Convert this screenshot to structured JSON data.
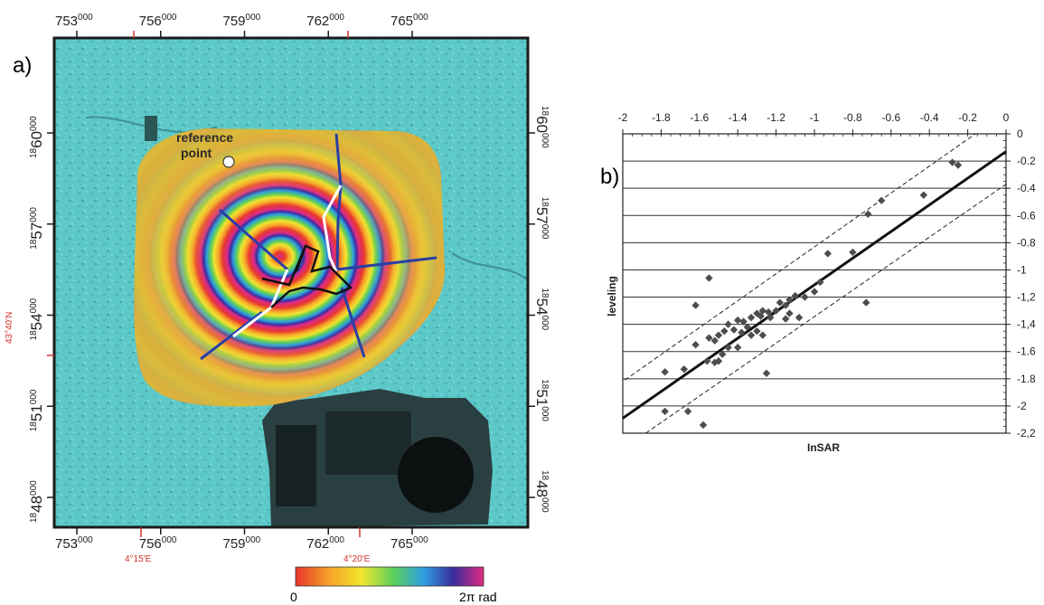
{
  "panel_a": {
    "label": "a)",
    "top_ticks": [
      {
        "base": "753",
        "exp": "000",
        "x": 753000
      },
      {
        "base": "756",
        "exp": "000",
        "x": 756000
      },
      {
        "base": "759",
        "exp": "000",
        "x": 759000
      },
      {
        "base": "762",
        "exp": "000",
        "x": 762000
      },
      {
        "base": "765",
        "exp": "000",
        "x": 765000
      }
    ],
    "bottom_ticks": [
      {
        "base": "753",
        "exp": "000",
        "x": 753000
      },
      {
        "base": "756",
        "exp": "000",
        "x": 756000
      },
      {
        "base": "759",
        "exp": "000",
        "x": 759000
      },
      {
        "base": "762",
        "exp": "000",
        "x": 762000
      },
      {
        "base": "765",
        "exp": "000",
        "x": 765000
      }
    ],
    "left_ticks": [
      {
        "pre": "18",
        "main": "60",
        "post": "000",
        "y": 1860000
      },
      {
        "pre": "18",
        "main": "57",
        "post": "000",
        "y": 1857000
      },
      {
        "pre": "18",
        "main": "54",
        "post": "000",
        "y": 1854000
      },
      {
        "pre": "18",
        "main": "51",
        "post": "000",
        "y": 1851000
      },
      {
        "pre": "18",
        "main": "48",
        "post": "000",
        "y": 1848000
      }
    ],
    "right_ticks": [
      {
        "pre": "18",
        "main": "60",
        "post": "000",
        "y": 1860000
      },
      {
        "pre": "18",
        "main": "57",
        "post": "000",
        "y": 1857000
      },
      {
        "pre": "18",
        "main": "54",
        "post": "000",
        "y": 1854000
      },
      {
        "pre": "18",
        "main": "51",
        "post": "000",
        "y": 1851000
      },
      {
        "pre": "18",
        "main": "48",
        "post": "000",
        "y": 1848000
      }
    ],
    "geo_labels": {
      "lat": "43°40'N",
      "lon_west": "4°15'E",
      "lon_east": "4°20'E"
    },
    "annotation": "reference point",
    "annotation_line1": "reference",
    "annotation_line2": "point",
    "colorbar": {
      "min_label": "0",
      "max_label": "2π rad"
    }
  },
  "chart_data": {
    "type": "scatter",
    "panel_label": "b)",
    "title": "",
    "xlabel": "InSAR",
    "ylabel": "leveling",
    "xlim": [
      -2.0,
      0.0
    ],
    "ylim": [
      -2.2,
      0.0
    ],
    "x_ticks": [
      -2,
      -1.8,
      -1.6,
      -1.4,
      -1.2,
      -1,
      -0.8,
      -0.6,
      -0.4,
      -0.2,
      0
    ],
    "x_tick_labels": [
      "-2",
      "-1.8",
      "-1.6",
      "-1.4",
      "-1.2",
      "-1",
      "-0.8",
      "-0.6",
      "-0.4",
      "-0.2",
      "0"
    ],
    "y_ticks": [
      0,
      -0.2,
      -0.4,
      -0.6,
      -0.8,
      -1,
      -1.2,
      -1.4,
      -1.6,
      -1.8,
      -2,
      -2.2
    ],
    "y_tick_labels": [
      "0",
      "-0.2",
      "-0.4",
      "-0.6",
      "-0.8",
      "-1",
      "-1,2",
      "-1,4",
      "-1.6",
      "-1.8",
      "-2",
      "-2,2"
    ],
    "grid": "horizontal",
    "series": [
      {
        "points": [
          [
            -0.28,
            -0.21
          ],
          [
            -0.25,
            -0.23
          ],
          [
            -0.43,
            -0.45
          ],
          [
            -0.65,
            -0.49
          ],
          [
            -0.72,
            -0.59
          ],
          [
            -0.93,
            -0.88
          ],
          [
            -0.8,
            -0.87
          ],
          [
            -0.97,
            -1.09
          ],
          [
            -1.0,
            -1.16
          ],
          [
            -1.55,
            -1.06
          ],
          [
            -1.62,
            -1.26
          ],
          [
            -1.05,
            -1.2
          ],
          [
            -1.1,
            -1.19
          ],
          [
            -1.13,
            -1.22
          ],
          [
            -1.15,
            -1.26
          ],
          [
            -1.18,
            -1.24
          ],
          [
            -1.2,
            -1.3
          ],
          [
            -1.24,
            -1.31
          ],
          [
            -1.27,
            -1.3
          ],
          [
            -1.3,
            -1.32
          ],
          [
            -1.33,
            -1.35
          ],
          [
            -1.28,
            -1.34
          ],
          [
            -1.23,
            -1.35
          ],
          [
            -1.08,
            -1.35
          ],
          [
            -1.13,
            -1.32
          ],
          [
            -1.15,
            -1.36
          ],
          [
            -0.73,
            -1.24
          ],
          [
            -1.37,
            -1.38
          ],
          [
            -1.4,
            -1.37
          ],
          [
            -1.45,
            -1.4
          ],
          [
            -1.35,
            -1.42
          ],
          [
            -1.3,
            -1.45
          ],
          [
            -1.38,
            -1.46
          ],
          [
            -1.42,
            -1.44
          ],
          [
            -1.47,
            -1.45
          ],
          [
            -1.5,
            -1.48
          ],
          [
            -1.52,
            -1.52
          ],
          [
            -1.55,
            -1.5
          ],
          [
            -1.33,
            -1.48
          ],
          [
            -1.27,
            -1.48
          ],
          [
            -1.4,
            -1.57
          ],
          [
            -1.45,
            -1.57
          ],
          [
            -1.48,
            -1.62
          ],
          [
            -1.5,
            -1.67
          ],
          [
            -1.52,
            -1.68
          ],
          [
            -1.56,
            -1.67
          ],
          [
            -1.62,
            -1.55
          ],
          [
            -1.25,
            -1.76
          ],
          [
            -1.68,
            -1.73
          ],
          [
            -1.78,
            -1.75
          ],
          [
            -1.78,
            -2.04
          ],
          [
            -1.66,
            -2.04
          ],
          [
            -1.58,
            -2.14
          ]
        ]
      }
    ],
    "regression_line": {
      "style": "solid",
      "from": [
        -2.0,
        -2.09
      ],
      "to": [
        0.0,
        -0.13
      ]
    },
    "bound_lines": [
      {
        "style": "dashed",
        "from": [
          -1.99,
          -1.81
        ],
        "to": [
          -0.16,
          0.0
        ]
      },
      {
        "style": "dashed",
        "from": [
          -1.88,
          -2.2
        ],
        "to": [
          0.0,
          -0.37
        ]
      }
    ]
  },
  "colors": {
    "map_background": "#5cc8c8",
    "map_frame": "#1a1a1a",
    "blue_profile": "#2a3fa6",
    "white_profile": "#ffffff",
    "black_profile": "#111111",
    "point_marker": "#4d4d4d",
    "regression": "#111111",
    "geo_red": "#d0302a"
  }
}
